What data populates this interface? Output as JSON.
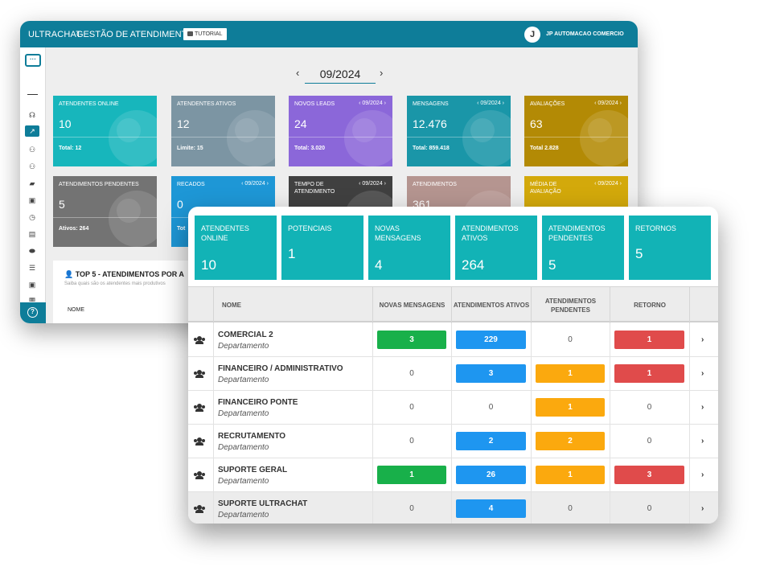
{
  "app": {
    "brand": "ULTRACHAT",
    "title": "GESTÃO DE ATENDIMENTOS",
    "tutorial_label": "TUTORIAL",
    "avatar_initial": "J",
    "company": "JP AUTOMACAO COMERCIO"
  },
  "month_nav": {
    "value": "09/2024",
    "prev": "‹",
    "next": "›"
  },
  "kpis_row1": [
    {
      "label": "ATENDENTES ONLINE",
      "value": "10",
      "footer": "Total: 12",
      "color": "#17b6bc"
    },
    {
      "label": "ATENDENTES ATIVOS",
      "value": "12",
      "footer": "Limite: 15",
      "color": "#7c95a3"
    },
    {
      "label": "NOVOS LEADS",
      "month": "‹ 09/2024 ›",
      "value": "24",
      "footer": "Total: 3.020",
      "color": "#8b67d9"
    },
    {
      "label": "MENSAGENS",
      "month": "‹ 09/2024 ›",
      "value": "12.476",
      "footer": "Total: 859.418",
      "color": "#1a96a8"
    },
    {
      "label": "AVALIAÇÕES",
      "month": "‹ 09/2024 ›",
      "value": "63",
      "footer": "Total 2.828",
      "color": "#b38a05"
    }
  ],
  "kpis_row2": [
    {
      "label": "ATENDIMENTOS PENDENTES",
      "value": "5",
      "footer": "Ativos: 264",
      "color": "#737373"
    },
    {
      "label": "RECADOS",
      "month": "‹ 09/2024 ›",
      "value": "0",
      "footer": "Tot",
      "color": "#1e97d6"
    },
    {
      "label": "TEMPO DE ATENDIMENTO",
      "month": "‹ 09/2024 ›",
      "value": "",
      "footer": "",
      "color": "#404040"
    },
    {
      "label": "ATENDIMENTOS",
      "month": "",
      "value": "361",
      "footer": "",
      "color": "#b59590"
    },
    {
      "label": "MÉDIA DE AVALIAÇÃO",
      "month": "‹ 09/2024 ›",
      "value": "",
      "footer": "",
      "color": "#d3a90b"
    }
  ],
  "top5": {
    "title": "TOP 5 - ATENDIMENTOS POR A",
    "subtitle": "Saiba quais são os atendentes mais produtivos",
    "column": "NOME"
  },
  "summary": [
    {
      "label": "ATENDENTES ONLINE",
      "value": "10"
    },
    {
      "label": "POTENCIAIS",
      "value": "1"
    },
    {
      "label": "NOVAS MENSAGENS",
      "value": "4"
    },
    {
      "label": "ATENDIMENTOS ATIVOS",
      "value": "264"
    },
    {
      "label": "ATENDIMENTOS PENDENTES",
      "value": "5"
    },
    {
      "label": "RETORNOS",
      "value": "5"
    }
  ],
  "table": {
    "headers": [
      "NOME",
      "NOVAS MENSAGENS",
      "ATENDIMENTOS ATIVOS",
      "ATENDIMENTOS PENDENTES",
      "RETORNO"
    ],
    "subtitle": "Departamento",
    "rows": [
      {
        "name": "COMERCIAL 2",
        "novas": "3",
        "ativos": "229",
        "pendentes": "0",
        "retorno": "1"
      },
      {
        "name": "FINANCEIRO / ADMINISTRATIVO",
        "novas": "0",
        "ativos": "3",
        "pendentes": "1",
        "retorno": "1"
      },
      {
        "name": "FINANCEIRO PONTE",
        "novas": "0",
        "ativos": "0",
        "pendentes": "1",
        "retorno": "0"
      },
      {
        "name": "RECRUTAMENTO",
        "novas": "0",
        "ativos": "2",
        "pendentes": "2",
        "retorno": "0"
      },
      {
        "name": "SUPORTE GERAL",
        "novas": "1",
        "ativos": "26",
        "pendentes": "1",
        "retorno": "3"
      },
      {
        "name": "SUPORTE ULTRACHAT",
        "novas": "0",
        "ativos": "4",
        "pendentes": "0",
        "retorno": "0"
      }
    ],
    "pill_colors": {
      "novas": "#18b04a",
      "ativos": "#1e96f0",
      "pendentes": "#fba90e",
      "retorno": "#e04b4b"
    },
    "chevron": "›"
  },
  "icons": {
    "sidebar": [
      "menu-icon",
      "headset-icon",
      "chart-icon",
      "users-icon",
      "users-icon",
      "folder-icon",
      "id-card-icon",
      "alarm-icon",
      "contact-icon",
      "tag-icon",
      "list-icon",
      "user-card-icon",
      "grid-icon"
    ],
    "help": "help-icon",
    "row": "group-icon"
  }
}
